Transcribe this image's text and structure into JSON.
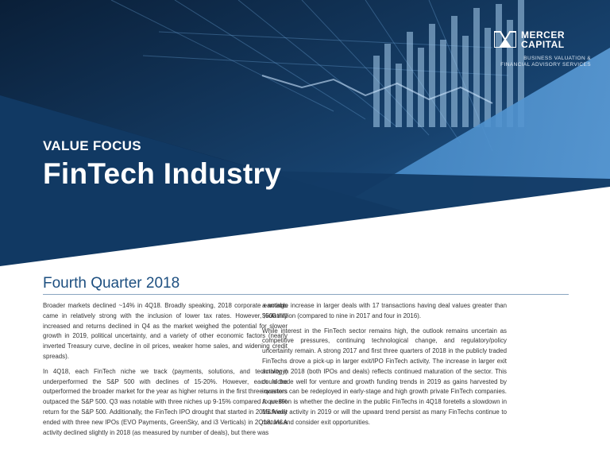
{
  "header": {
    "logo_name_line1": "MERCER",
    "logo_name_line2": "CAPITAL",
    "logo_tagline_line1": "BUSINESS VALUATION &",
    "logo_tagline_line2": "FINANCIAL ADVISORY SERVICES",
    "eyebrow": "VALUE FOCUS",
    "title": "FinTech Industry"
  },
  "section_title": "Fourth Quarter 2018",
  "body": {
    "left_paragraphs": [
      "Broader markets declined ~14% in 4Q18. Broadly speaking, 2018 corporate earnings came in relatively strong with the inclusion of lower tax rates. However, volatility increased and returns declined in Q4 as the market weighed the potential for slower growth in 2019, political uncertainty, and a variety of other economic factors (nearly inverted Treasury curve, decline in oil prices, weaker home sales, and widening credit spreads).",
      "In 4Q18, each FinTech niche we track (payments, solutions, and technology) underperformed the S&P 500 with declines of 15-20%. However, each niche outperformed the broader market for the year as higher returns in the first three quarters outpaced the S&P 500. Q3 was notable with three niches up 9-15% compared to an 8% return for the S&P 500. Additionally, the FinTech IPO drought that started in 2016 finally ended with three new IPOs (EVO Payments, GreenSky, and i3 Verticals) in 2Q18. M&A activity declined slightly in 2018 (as measured by number of deals), but there was"
    ],
    "right_paragraphs": [
      "a notable increase in larger deals with 17 transactions having deal values greater than $500 million (compared to nine in 2017 and four in 2016).",
      "While interest in the FinTech sector remains high, the outlook remains uncertain as competitive pressures, continuing technological change, and regulatory/policy uncertainty remain. A strong 2017 and first three quarters of 2018 in the publicly traded FinTechs drove a pick-up in larger exit/IPO FinTech activity. The increase in larger exit activity in 2018 (both IPOs and deals) reflects continued maturation of the sector. This could bode well for venture and growth funding trends in 2019 as gains harvested by investors can be redeployed in early-stage and high growth private FinTech companies. A question is whether the decline in the public FinTechs in 4Q18 foretells a slowdown in M&A/exit activity in 2019 or will the upward trend persist as many FinTechs continue to mature and consider exit opportunities."
    ]
  },
  "colors": {
    "navy": "#0f2a4a",
    "steel_blue": "#1f5d96",
    "light_blue": "#3f85c4",
    "accent_text": "#1d4f80"
  },
  "icons": {
    "logo_mark": "mercer-capital-logo-icon"
  }
}
